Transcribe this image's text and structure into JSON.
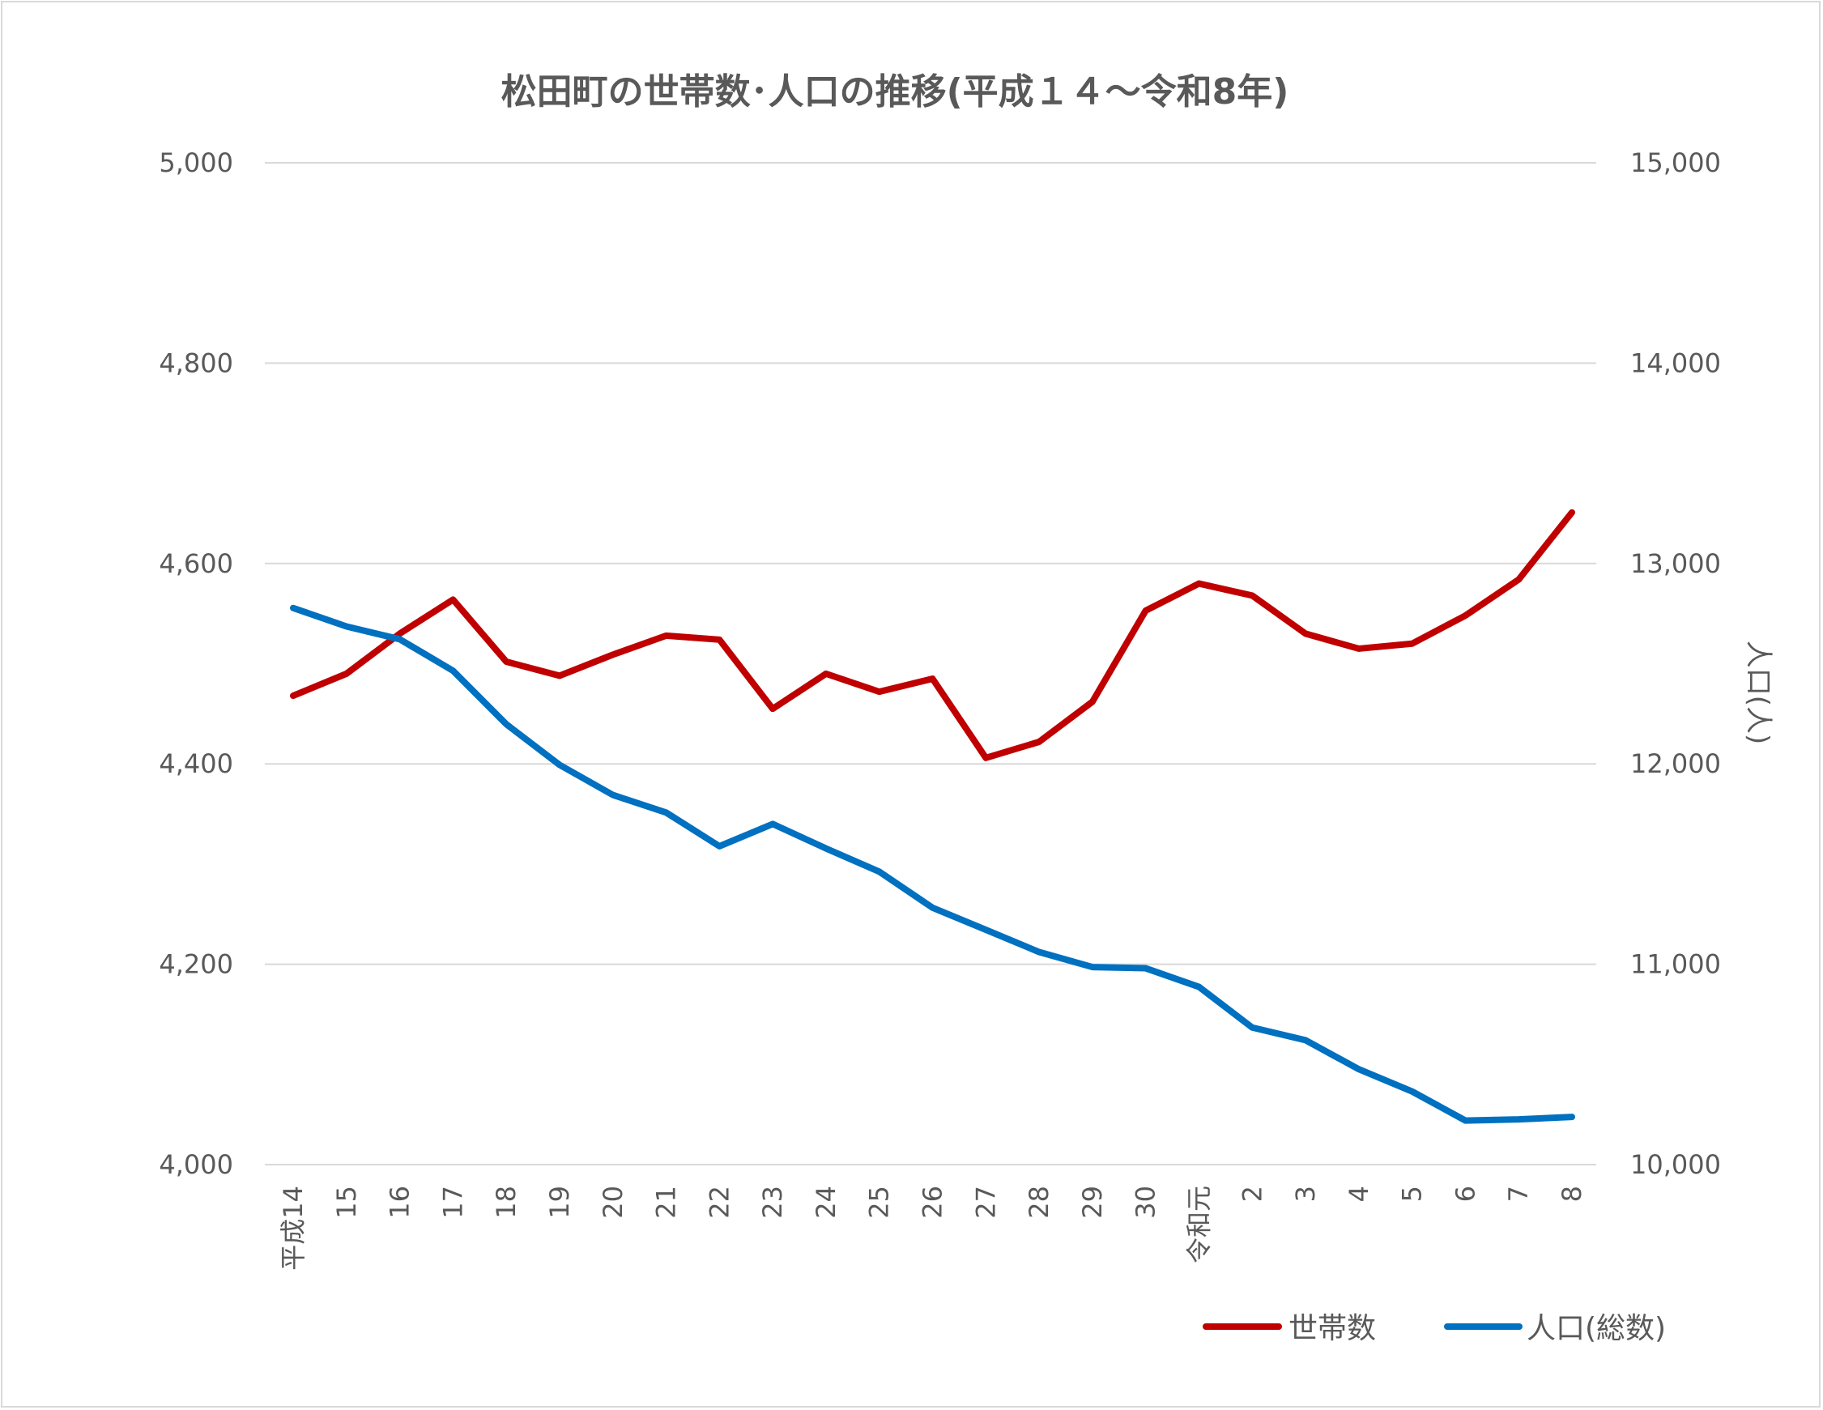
{
  "chart_data": {
    "type": "line",
    "title": "松田町の世帯数･人口の推移(平成１４～令和8年)",
    "categories": [
      "平成14",
      "15",
      "16",
      "17",
      "18",
      "19",
      "20",
      "21",
      "22",
      "23",
      "24",
      "25",
      "26",
      "27",
      "28",
      "29",
      "30",
      "令和元",
      "2",
      "3",
      "4",
      "5",
      "6",
      "7",
      "8"
    ],
    "y_left": {
      "label": "",
      "range": [
        4000,
        5000
      ],
      "ticks": [
        "4,000",
        "4,200",
        "4,400",
        "4,600",
        "4,800",
        "5,000"
      ],
      "tick_values": [
        4000,
        4200,
        4400,
        4600,
        4800,
        5000
      ]
    },
    "y_right": {
      "label": "人口(人)",
      "range": [
        10000,
        15000
      ],
      "ticks": [
        "10,000",
        "11,000",
        "12,000",
        "13,000",
        "14,000",
        "15,000"
      ],
      "tick_values": [
        10000,
        11000,
        12000,
        13000,
        14000,
        15000
      ]
    },
    "grid": true,
    "legend_position": "bottom-right",
    "series": [
      {
        "name": "世帯数",
        "axis": "left",
        "color": "#c00000",
        "values": [
          4468,
          4490,
          4530,
          4564,
          4502,
          4488,
          4509,
          4528,
          4524,
          4455,
          4490,
          4472,
          4485,
          4406,
          4422,
          4462,
          4553,
          4580,
          4568,
          4530,
          4515,
          4520,
          4548,
          4584,
          4651
        ]
      },
      {
        "name": "人口(総数)",
        "axis": "right",
        "color": "#0070c0",
        "values": [
          12778,
          12686,
          12622,
          12465,
          12198,
          11995,
          11845,
          11757,
          11589,
          11700,
          11578,
          11462,
          11282,
          11172,
          11061,
          10986,
          10980,
          10887,
          10684,
          10621,
          10476,
          10365,
          10220,
          10226,
          10238
        ]
      }
    ]
  }
}
